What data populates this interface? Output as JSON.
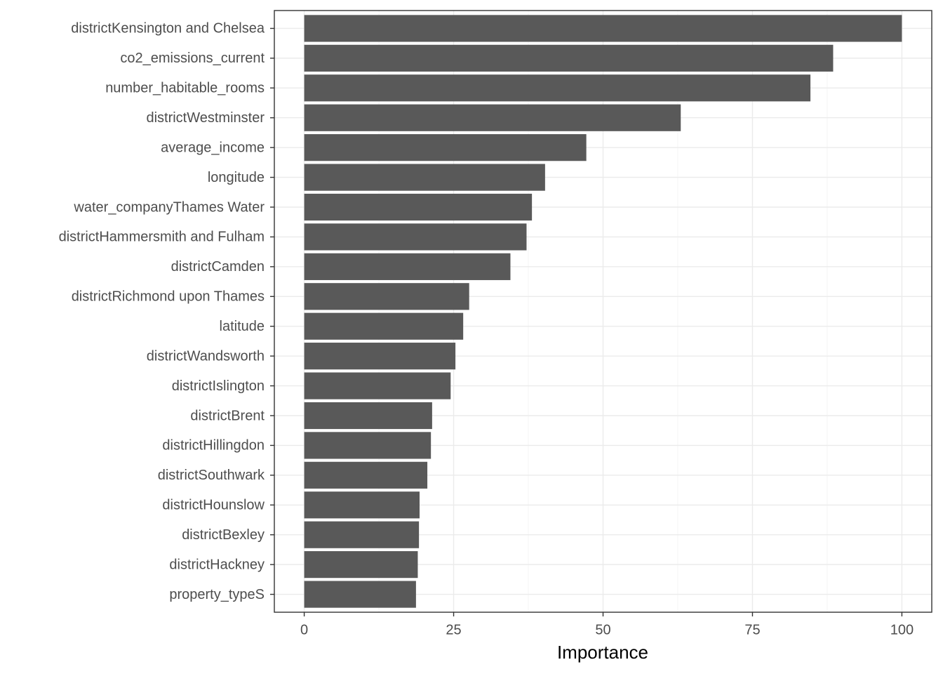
{
  "chart_data": {
    "type": "bar",
    "orientation": "horizontal",
    "x_label": "Importance",
    "categories": [
      "districtKensington and Chelsea",
      "co2_emissions_current",
      "number_habitable_rooms",
      "districtWestminster",
      "average_income",
      "longitude",
      "water_companyThames Water",
      "districtHammersmith and Fulham",
      "districtCamden",
      "districtRichmond upon Thames",
      "latitude",
      "districtWandsworth",
      "districtIslington",
      "districtBrent",
      "districtHillingdon",
      "districtSouthwark",
      "districtHounslow",
      "districtBexley",
      "districtHackney",
      "property_typeS"
    ],
    "values": [
      100,
      88.5,
      84.7,
      63.0,
      47.2,
      40.3,
      38.1,
      37.2,
      34.5,
      27.6,
      26.6,
      25.3,
      24.5,
      21.4,
      21.2,
      20.6,
      19.3,
      19.2,
      19.0,
      18.7
    ],
    "color": "#595959",
    "xlim": [
      -5,
      105
    ],
    "xticks": [
      0,
      25,
      50,
      75,
      100
    ],
    "grid": true
  }
}
